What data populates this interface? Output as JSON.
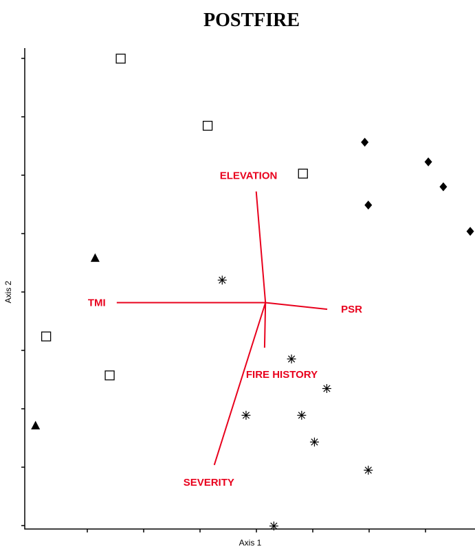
{
  "chart_data": {
    "type": "scatter",
    "title": "POSTFIRE",
    "xlabel": "Axis 1",
    "ylabel": "Axis 2",
    "xlim": [
      0,
      100
    ],
    "ylim": [
      0,
      100
    ],
    "grid": false,
    "series": [
      {
        "marker": "open-square",
        "color": "#000000",
        "points": [
          {
            "x": 20.5,
            "y": 99.8
          },
          {
            "x": 40.2,
            "y": 85.5
          },
          {
            "x": 61.8,
            "y": 75.3
          },
          {
            "x": 3.6,
            "y": 40.6
          },
          {
            "x": 18.0,
            "y": 32.3
          }
        ]
      },
      {
        "marker": "filled-diamond",
        "color": "#000000",
        "points": [
          {
            "x": 75.8,
            "y": 82.0
          },
          {
            "x": 90.2,
            "y": 77.8
          },
          {
            "x": 93.6,
            "y": 72.5
          },
          {
            "x": 76.6,
            "y": 68.6
          },
          {
            "x": 99.7,
            "y": 63.0
          }
        ]
      },
      {
        "marker": "filled-triangle",
        "color": "#000000",
        "points": [
          {
            "x": 14.7,
            "y": 57.3
          },
          {
            "x": 1.2,
            "y": 21.6
          }
        ]
      },
      {
        "marker": "asterisk",
        "color": "#000000",
        "points": [
          {
            "x": 43.5,
            "y": 52.6
          },
          {
            "x": 59.2,
            "y": 35.8
          },
          {
            "x": 67.2,
            "y": 29.5
          },
          {
            "x": 48.9,
            "y": 23.8
          },
          {
            "x": 61.5,
            "y": 23.8
          },
          {
            "x": 64.4,
            "y": 18.1
          },
          {
            "x": 76.6,
            "y": 12.1
          },
          {
            "x": 55.2,
            "y": 0.2
          }
        ]
      }
    ],
    "vectors": {
      "origin": {
        "x": 53.3,
        "y": 47.8
      },
      "items": [
        {
          "label": "ELEVATION",
          "end": {
            "x": 51.2,
            "y": 71.5
          }
        },
        {
          "label": "TMI",
          "end": {
            "x": 19.6,
            "y": 47.8
          }
        },
        {
          "label": "PSR",
          "end": {
            "x": 67.3,
            "y": 46.4
          }
        },
        {
          "label": "FIRE HISTORY",
          "end": {
            "x": 53.1,
            "y": 38.2
          }
        },
        {
          "label": "SEVERITY",
          "end": {
            "x": 41.7,
            "y": 13.2
          }
        }
      ]
    }
  }
}
